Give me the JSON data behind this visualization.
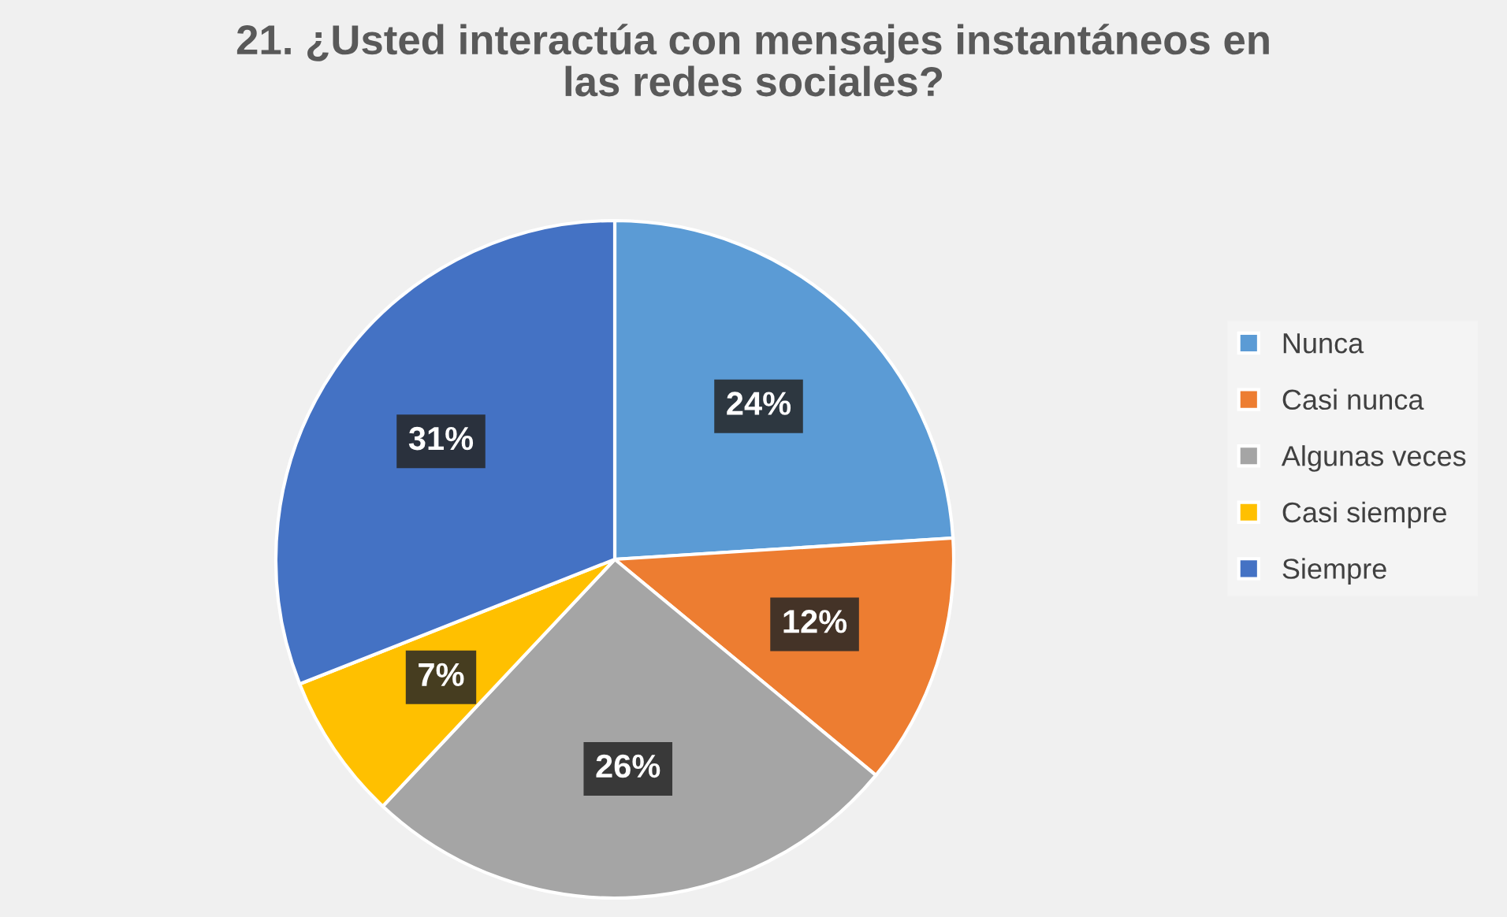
{
  "chart_data": {
    "type": "pie",
    "title": "21. ¿Usted interactúa con mensajes instantáneos en\nlas redes sociales?",
    "categories": [
      "Nunca",
      "Casi nunca",
      "Algunas veces",
      "Casi siempre",
      "Siempre"
    ],
    "values": [
      24,
      12,
      26,
      7,
      31
    ],
    "colors": [
      "#5b9bd5",
      "#ed7d31",
      "#a5a5a5",
      "#ffc000",
      "#4472c4"
    ],
    "value_labels": [
      "24%",
      "12%",
      "26%",
      "7%",
      "31%"
    ],
    "legend": "right"
  }
}
